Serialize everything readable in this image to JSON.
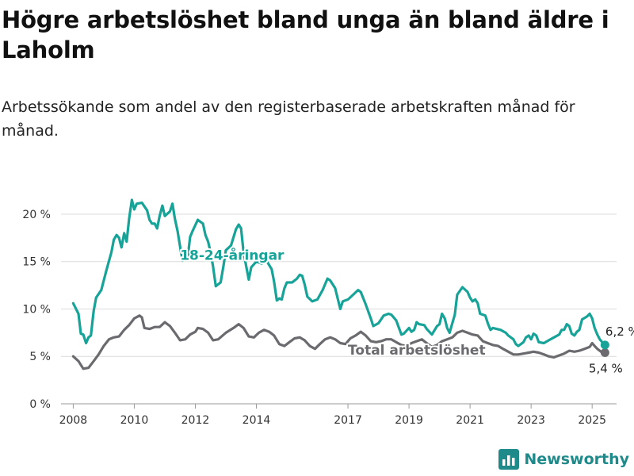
{
  "header": {
    "title": "Högre arbetslöshet bland unga än bland äldre i Laholm",
    "subtitle": "Arbetssökande som andel av den registerbaserade arbetskraften månad för månad."
  },
  "brand": {
    "name": "Newsworthy",
    "icon": "newsworthy-logo-icon",
    "color": "#1f8a8a"
  },
  "chart_data": {
    "type": "line",
    "title": "Högre arbetslöshet bland unga än bland äldre i Laholm",
    "subtitle": "Arbetssökande som andel av den registerbaserade arbetskraften månad för månad.",
    "xlabel": "",
    "ylabel": "",
    "xlim": [
      2007.6,
      2025.8
    ],
    "ylim": [
      0,
      22
    ],
    "grid": true,
    "x_ticks": [
      2008,
      2010,
      2012,
      2014,
      2017,
      2019,
      2021,
      2023,
      2025
    ],
    "x_tick_labels": [
      "2008",
      "2010",
      "2012",
      "2014",
      "2017",
      "2019",
      "2021",
      "2023",
      "2025"
    ],
    "y_ticks": [
      0,
      5,
      10,
      15,
      20
    ],
    "y_tick_labels": [
      "0 %",
      "5 %",
      "10 %",
      "15 %",
      "20 %"
    ],
    "series": [
      {
        "name": "18-24-åringar",
        "color": "#17a398",
        "end_label": "6,2 %",
        "end_value": 6.2,
        "points": [
          [
            2008.0,
            10.6
          ],
          [
            2008.17,
            9.5
          ],
          [
            2008.25,
            7.4
          ],
          [
            2008.33,
            7.3
          ],
          [
            2008.42,
            6.4
          ],
          [
            2008.5,
            7.0
          ],
          [
            2008.58,
            7.2
          ],
          [
            2008.67,
            9.8
          ],
          [
            2008.75,
            11.2
          ],
          [
            2008.92,
            12.0
          ],
          [
            2009.08,
            14.0
          ],
          [
            2009.25,
            16.0
          ],
          [
            2009.33,
            17.3
          ],
          [
            2009.42,
            17.8
          ],
          [
            2009.5,
            17.5
          ],
          [
            2009.58,
            16.5
          ],
          [
            2009.67,
            18.0
          ],
          [
            2009.75,
            17.1
          ],
          [
            2009.83,
            19.5
          ],
          [
            2009.92,
            21.5
          ],
          [
            2010.0,
            20.5
          ],
          [
            2010.08,
            21.1
          ],
          [
            2010.25,
            21.2
          ],
          [
            2010.42,
            20.4
          ],
          [
            2010.5,
            19.4
          ],
          [
            2010.58,
            19.0
          ],
          [
            2010.67,
            19.0
          ],
          [
            2010.75,
            18.5
          ],
          [
            2010.83,
            19.8
          ],
          [
            2010.92,
            20.9
          ],
          [
            2011.0,
            19.8
          ],
          [
            2011.17,
            20.3
          ],
          [
            2011.25,
            21.1
          ],
          [
            2011.33,
            19.5
          ],
          [
            2011.42,
            18.2
          ],
          [
            2011.5,
            16.6
          ],
          [
            2011.58,
            15.1
          ],
          [
            2011.67,
            15.5
          ],
          [
            2011.75,
            15.4
          ],
          [
            2011.83,
            17.6
          ],
          [
            2011.92,
            18.3
          ],
          [
            2012.08,
            19.4
          ],
          [
            2012.25,
            19.0
          ],
          [
            2012.33,
            17.8
          ],
          [
            2012.42,
            17.1
          ],
          [
            2012.5,
            16.0
          ],
          [
            2012.58,
            14.5
          ],
          [
            2012.67,
            12.4
          ],
          [
            2012.83,
            12.8
          ],
          [
            2012.92,
            14.5
          ],
          [
            2013.0,
            16.2
          ],
          [
            2013.17,
            16.7
          ],
          [
            2013.33,
            18.4
          ],
          [
            2013.42,
            18.9
          ],
          [
            2013.5,
            18.5
          ],
          [
            2013.58,
            16.0
          ],
          [
            2013.75,
            13.1
          ],
          [
            2013.83,
            14.4
          ],
          [
            2014.0,
            15.0
          ],
          [
            2014.17,
            14.8
          ],
          [
            2014.33,
            15.1
          ],
          [
            2014.5,
            14.2
          ],
          [
            2014.58,
            12.9
          ],
          [
            2014.67,
            10.9
          ],
          [
            2014.75,
            11.1
          ],
          [
            2014.83,
            11.0
          ],
          [
            2014.92,
            12.2
          ],
          [
            2015.0,
            12.8
          ],
          [
            2015.17,
            12.8
          ],
          [
            2015.33,
            13.2
          ],
          [
            2015.42,
            13.6
          ],
          [
            2015.5,
            13.5
          ],
          [
            2015.58,
            12.6
          ],
          [
            2015.67,
            11.3
          ],
          [
            2015.83,
            10.8
          ],
          [
            2016.0,
            11.0
          ],
          [
            2016.17,
            12.0
          ],
          [
            2016.33,
            13.2
          ],
          [
            2016.42,
            13.0
          ],
          [
            2016.58,
            12.2
          ],
          [
            2016.75,
            10.0
          ],
          [
            2016.83,
            10.8
          ],
          [
            2017.0,
            11.0
          ],
          [
            2017.17,
            11.5
          ],
          [
            2017.33,
            12.0
          ],
          [
            2017.42,
            11.8
          ],
          [
            2017.58,
            10.5
          ],
          [
            2017.75,
            9.0
          ],
          [
            2017.83,
            8.2
          ],
          [
            2018.0,
            8.5
          ],
          [
            2018.17,
            9.3
          ],
          [
            2018.33,
            9.5
          ],
          [
            2018.42,
            9.4
          ],
          [
            2018.58,
            8.8
          ],
          [
            2018.75,
            7.3
          ],
          [
            2018.83,
            7.4
          ],
          [
            2019.0,
            8.0
          ],
          [
            2019.08,
            7.6
          ],
          [
            2019.17,
            7.8
          ],
          [
            2019.25,
            8.6
          ],
          [
            2019.33,
            8.4
          ],
          [
            2019.5,
            8.3
          ],
          [
            2019.58,
            7.9
          ],
          [
            2019.75,
            7.3
          ],
          [
            2019.92,
            8.2
          ],
          [
            2020.0,
            8.4
          ],
          [
            2020.08,
            9.5
          ],
          [
            2020.17,
            9.0
          ],
          [
            2020.25,
            8.0
          ],
          [
            2020.33,
            7.5
          ],
          [
            2020.5,
            9.4
          ],
          [
            2020.58,
            11.5
          ],
          [
            2020.75,
            12.3
          ],
          [
            2020.92,
            11.8
          ],
          [
            2021.0,
            11.2
          ],
          [
            2021.08,
            10.8
          ],
          [
            2021.17,
            11.0
          ],
          [
            2021.25,
            10.6
          ],
          [
            2021.33,
            9.5
          ],
          [
            2021.5,
            9.3
          ],
          [
            2021.58,
            8.5
          ],
          [
            2021.67,
            7.8
          ],
          [
            2021.75,
            8.0
          ],
          [
            2022.0,
            7.8
          ],
          [
            2022.17,
            7.5
          ],
          [
            2022.25,
            7.2
          ],
          [
            2022.42,
            6.8
          ],
          [
            2022.5,
            6.3
          ],
          [
            2022.58,
            6.1
          ],
          [
            2022.75,
            6.5
          ],
          [
            2022.83,
            7.0
          ],
          [
            2022.92,
            7.2
          ],
          [
            2023.0,
            6.8
          ],
          [
            2023.08,
            7.4
          ],
          [
            2023.17,
            7.2
          ],
          [
            2023.25,
            6.5
          ],
          [
            2023.42,
            6.4
          ],
          [
            2023.58,
            6.7
          ],
          [
            2023.75,
            7.0
          ],
          [
            2023.92,
            7.3
          ],
          [
            2024.0,
            7.8
          ],
          [
            2024.08,
            7.8
          ],
          [
            2024.17,
            8.4
          ],
          [
            2024.25,
            8.2
          ],
          [
            2024.33,
            7.4
          ],
          [
            2024.42,
            7.2
          ],
          [
            2024.5,
            7.6
          ],
          [
            2024.58,
            7.8
          ],
          [
            2024.67,
            8.9
          ],
          [
            2024.83,
            9.2
          ],
          [
            2024.92,
            9.5
          ],
          [
            2025.0,
            9.0
          ],
          [
            2025.08,
            8.0
          ],
          [
            2025.17,
            7.3
          ],
          [
            2025.25,
            6.8
          ],
          [
            2025.33,
            6.5
          ],
          [
            2025.42,
            6.2
          ]
        ]
      },
      {
        "name": "Total arbetslöshet",
        "color": "#6b6a6e",
        "end_label": "5,4 %",
        "end_value": 5.4,
        "points": [
          [
            2008.0,
            5.0
          ],
          [
            2008.17,
            4.5
          ],
          [
            2008.33,
            3.7
          ],
          [
            2008.5,
            3.8
          ],
          [
            2008.67,
            4.5
          ],
          [
            2008.83,
            5.2
          ],
          [
            2009.0,
            6.1
          ],
          [
            2009.17,
            6.8
          ],
          [
            2009.33,
            7.0
          ],
          [
            2009.5,
            7.1
          ],
          [
            2009.67,
            7.8
          ],
          [
            2009.83,
            8.3
          ],
          [
            2010.0,
            9.0
          ],
          [
            2010.17,
            9.3
          ],
          [
            2010.25,
            9.1
          ],
          [
            2010.33,
            8.0
          ],
          [
            2010.5,
            7.9
          ],
          [
            2010.67,
            8.1
          ],
          [
            2010.83,
            8.1
          ],
          [
            2011.0,
            8.6
          ],
          [
            2011.17,
            8.2
          ],
          [
            2011.33,
            7.5
          ],
          [
            2011.5,
            6.7
          ],
          [
            2011.67,
            6.8
          ],
          [
            2011.83,
            7.3
          ],
          [
            2012.0,
            7.6
          ],
          [
            2012.08,
            8.0
          ],
          [
            2012.25,
            7.9
          ],
          [
            2012.42,
            7.5
          ],
          [
            2012.58,
            6.7
          ],
          [
            2012.75,
            6.8
          ],
          [
            2013.0,
            7.5
          ],
          [
            2013.25,
            8.0
          ],
          [
            2013.42,
            8.4
          ],
          [
            2013.58,
            8.0
          ],
          [
            2013.75,
            7.1
          ],
          [
            2013.92,
            7.0
          ],
          [
            2014.08,
            7.5
          ],
          [
            2014.25,
            7.8
          ],
          [
            2014.42,
            7.6
          ],
          [
            2014.58,
            7.2
          ],
          [
            2014.75,
            6.3
          ],
          [
            2014.92,
            6.1
          ],
          [
            2015.08,
            6.5
          ],
          [
            2015.25,
            6.9
          ],
          [
            2015.42,
            7.0
          ],
          [
            2015.58,
            6.7
          ],
          [
            2015.75,
            6.1
          ],
          [
            2015.92,
            5.8
          ],
          [
            2016.08,
            6.3
          ],
          [
            2016.25,
            6.8
          ],
          [
            2016.42,
            7.0
          ],
          [
            2016.58,
            6.8
          ],
          [
            2016.75,
            6.4
          ],
          [
            2016.92,
            6.3
          ],
          [
            2017.08,
            6.9
          ],
          [
            2017.25,
            7.2
          ],
          [
            2017.42,
            7.6
          ],
          [
            2017.58,
            7.2
          ],
          [
            2017.75,
            6.6
          ],
          [
            2017.92,
            6.5
          ],
          [
            2018.08,
            6.6
          ],
          [
            2018.25,
            6.8
          ],
          [
            2018.42,
            6.8
          ],
          [
            2018.58,
            6.5
          ],
          [
            2018.75,
            6.2
          ],
          [
            2018.92,
            6.1
          ],
          [
            2019.08,
            6.4
          ],
          [
            2019.25,
            6.6
          ],
          [
            2019.42,
            6.8
          ],
          [
            2019.58,
            6.4
          ],
          [
            2019.75,
            6.0
          ],
          [
            2019.92,
            6.2
          ],
          [
            2020.08,
            6.6
          ],
          [
            2020.25,
            6.8
          ],
          [
            2020.42,
            7.0
          ],
          [
            2020.58,
            7.5
          ],
          [
            2020.75,
            7.7
          ],
          [
            2020.92,
            7.5
          ],
          [
            2021.08,
            7.3
          ],
          [
            2021.25,
            7.2
          ],
          [
            2021.42,
            6.6
          ],
          [
            2021.58,
            6.4
          ],
          [
            2021.75,
            6.2
          ],
          [
            2021.92,
            6.1
          ],
          [
            2022.08,
            5.8
          ],
          [
            2022.25,
            5.5
          ],
          [
            2022.42,
            5.2
          ],
          [
            2022.58,
            5.2
          ],
          [
            2022.75,
            5.3
          ],
          [
            2022.92,
            5.4
          ],
          [
            2023.08,
            5.5
          ],
          [
            2023.25,
            5.4
          ],
          [
            2023.42,
            5.2
          ],
          [
            2023.58,
            5.0
          ],
          [
            2023.75,
            4.9
          ],
          [
            2023.92,
            5.1
          ],
          [
            2024.08,
            5.3
          ],
          [
            2024.25,
            5.6
          ],
          [
            2024.42,
            5.5
          ],
          [
            2024.58,
            5.6
          ],
          [
            2024.75,
            5.8
          ],
          [
            2024.92,
            6.0
          ],
          [
            2025.0,
            6.4
          ],
          [
            2025.08,
            6.1
          ],
          [
            2025.17,
            5.8
          ],
          [
            2025.25,
            5.6
          ],
          [
            2025.33,
            5.4
          ],
          [
            2025.42,
            5.4
          ]
        ]
      }
    ]
  }
}
